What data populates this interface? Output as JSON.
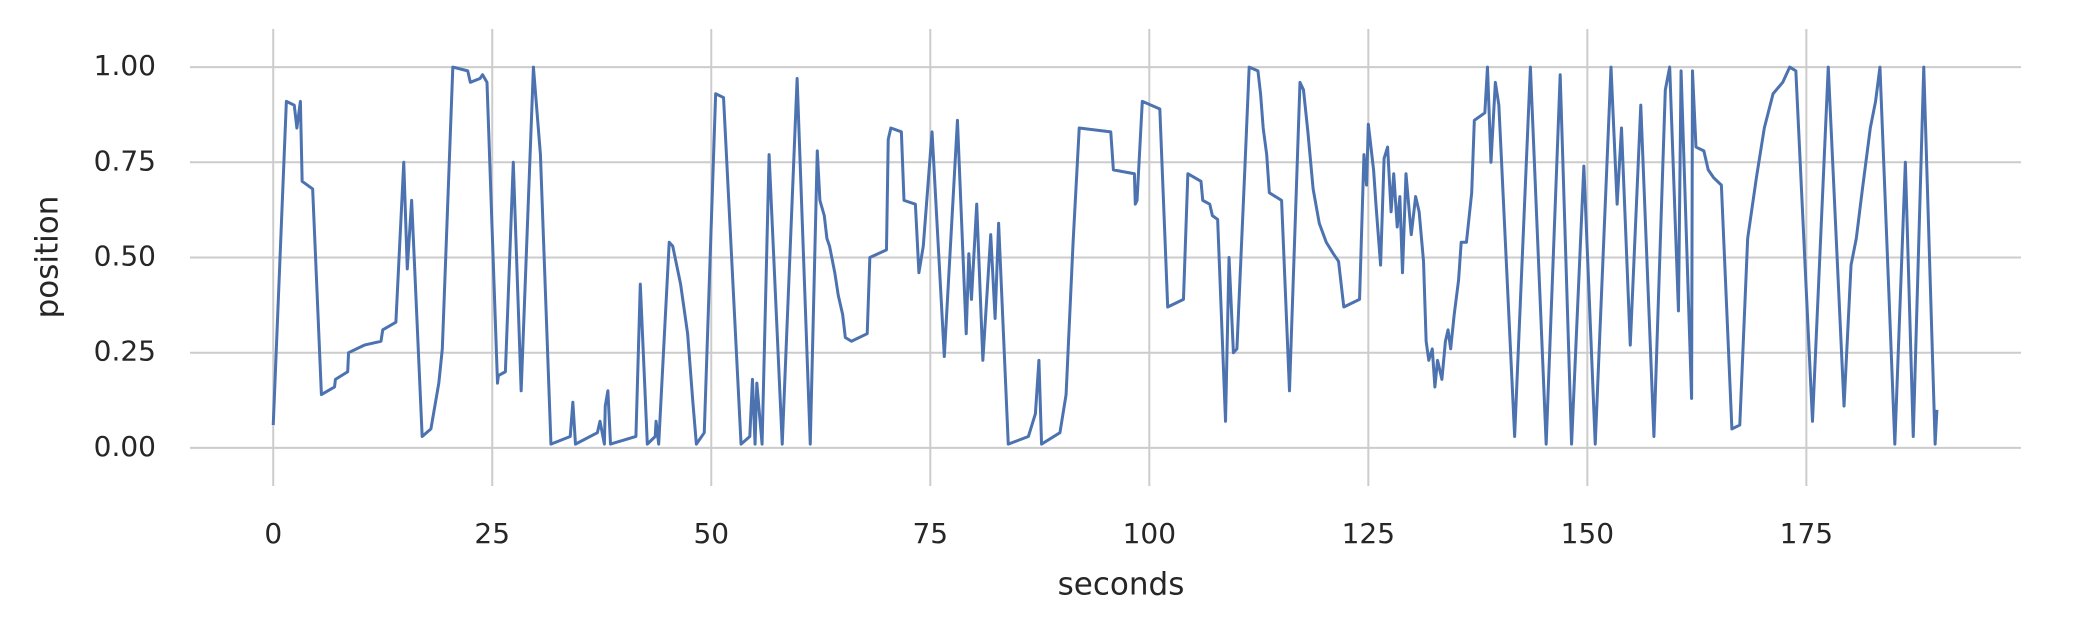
{
  "chart_data": {
    "type": "line",
    "xlabel": "seconds",
    "ylabel": "position",
    "color": "#4c72b0",
    "grid": true,
    "xlim": [
      -9.5,
      199.5
    ],
    "ylim": [
      -0.1,
      1.1
    ],
    "xticks": [
      0,
      25,
      50,
      75,
      100,
      125,
      150,
      175
    ],
    "yticks": [
      {
        "value": 0,
        "label": "0.00"
      },
      {
        "value": 0.25,
        "label": "0.25"
      },
      {
        "value": 0.5,
        "label": "0.50"
      },
      {
        "value": 0.75,
        "label": "0.75"
      },
      {
        "value": 1,
        "label": "1.00"
      }
    ],
    "x": [
      0,
      1.5,
      2.4,
      2.7,
      3.1,
      3.3,
      4.5,
      5.5,
      7.0,
      7.1,
      8.5,
      8.6,
      10.4,
      12.3,
      12.5,
      14.0,
      14.9,
      15.3,
      15.8,
      17.0,
      18.0,
      18.9,
      19.3,
      20.5,
      22.2,
      22.5,
      23.6,
      23.9,
      24.4,
      25.6,
      25.7,
      26.5,
      27.4,
      28.3,
      29.7,
      30.5,
      31.7,
      33.9,
      34.2,
      34.5,
      37.0,
      37.3,
      37.8,
      37.9,
      38.2,
      38.5,
      41.4,
      41.9,
      42.7,
      43.6,
      43.7,
      44.0,
      45.2,
      45.6,
      46.5,
      47.3,
      47.9,
      48.3,
      49.2,
      50.5,
      51.4,
      53.4,
      54.4,
      54.7,
      55.0,
      55.2,
      55.8,
      56.6,
      58.1,
      59.8,
      61.3,
      62.1,
      62.4,
      62.9,
      63.2,
      63.5,
      64.1,
      64.5,
      65.0,
      65.3,
      66.0,
      67.8,
      68.1,
      70.0,
      70.2,
      70.5,
      71.7,
      72.0,
      73.3,
      73.7,
      74.2,
      75.2,
      76.6,
      78.1,
      79.1,
      79.4,
      79.7,
      80.3,
      81.0,
      81.9,
      82.4,
      82.8,
      83.9,
      86.2,
      87.0,
      87.4,
      87.7,
      89.8,
      90.5,
      91.3,
      92.0,
      95.6,
      95.9,
      98.3,
      98.4,
      98.6,
      99.2,
      101.2,
      102.1,
      103.9,
      104.4,
      105.9,
      106.1,
      106.9,
      107.2,
      107.8,
      108.7,
      109.1,
      109.6,
      110.0,
      110.9,
      111.4,
      112.4,
      112.7,
      113.0,
      113.4,
      113.7,
      115.1,
      116.0,
      117.2,
      117.6,
      118.1,
      118.7,
      119.4,
      120.2,
      121.0,
      121.6,
      122.2,
      124.0,
      124.5,
      124.8,
      125.0,
      125.6,
      125.9,
      126.4,
      126.8,
      127.2,
      127.6,
      127.9,
      128.3,
      128.6,
      128.9,
      129.3,
      129.9,
      130.4,
      130.8,
      131.3,
      131.6,
      131.9,
      132.3,
      132.6,
      132.9,
      133.4,
      133.8,
      134.1,
      134.4,
      134.8,
      135.3,
      135.6,
      136.2,
      136.8,
      137.1,
      138.3,
      138.6,
      139.0,
      139.5,
      139.9,
      141.7,
      143.5,
      145.3,
      146.9,
      148.2,
      149.6,
      150.9,
      152.7,
      153.4,
      153.9,
      154.9,
      156.1,
      157.6,
      158.9,
      159.4,
      160.4,
      160.7,
      161.9,
      162.0,
      162.4,
      163.3,
      163.8,
      164.4,
      165.3,
      166.5,
      167.4,
      168.3,
      169.3,
      170.2,
      171.2,
      172.3,
      173.1,
      173.8,
      175.7,
      177.5,
      179.3,
      180.1,
      180.7,
      181.4,
      182.3,
      182.9,
      183.4,
      185.1,
      186.3,
      187.2,
      188.4,
      189.7,
      189.9
    ],
    "values": [
      0.06,
      0.91,
      0.9,
      0.84,
      0.91,
      0.7,
      0.68,
      0.14,
      0.16,
      0.18,
      0.2,
      0.25,
      0.27,
      0.28,
      0.31,
      0.33,
      0.75,
      0.47,
      0.65,
      0.03,
      0.05,
      0.17,
      0.26,
      1.0,
      0.99,
      0.96,
      0.97,
      0.98,
      0.96,
      0.17,
      0.19,
      0.2,
      0.75,
      0.15,
      1.0,
      0.77,
      0.01,
      0.03,
      0.12,
      0.01,
      0.04,
      0.07,
      0.01,
      0.11,
      0.15,
      0.01,
      0.03,
      0.43,
      0.01,
      0.03,
      0.07,
      0.01,
      0.54,
      0.53,
      0.43,
      0.3,
      0.12,
      0.01,
      0.04,
      0.93,
      0.92,
      0.01,
      0.03,
      0.18,
      0.01,
      0.17,
      0.01,
      0.77,
      0.01,
      0.97,
      0.01,
      0.78,
      0.65,
      0.61,
      0.55,
      0.53,
      0.46,
      0.4,
      0.35,
      0.29,
      0.28,
      0.3,
      0.5,
      0.52,
      0.81,
      0.84,
      0.83,
      0.65,
      0.64,
      0.46,
      0.53,
      0.83,
      0.24,
      0.86,
      0.3,
      0.51,
      0.39,
      0.64,
      0.23,
      0.56,
      0.34,
      0.59,
      0.01,
      0.03,
      0.09,
      0.23,
      0.01,
      0.04,
      0.14,
      0.54,
      0.84,
      0.83,
      0.73,
      0.72,
      0.64,
      0.65,
      0.91,
      0.89,
      0.37,
      0.39,
      0.72,
      0.7,
      0.65,
      0.64,
      0.61,
      0.6,
      0.07,
      0.5,
      0.25,
      0.26,
      0.73,
      1.0,
      0.99,
      0.93,
      0.84,
      0.77,
      0.67,
      0.65,
      0.15,
      0.96,
      0.94,
      0.83,
      0.68,
      0.59,
      0.54,
      0.51,
      0.49,
      0.37,
      0.39,
      0.77,
      0.69,
      0.85,
      0.73,
      0.63,
      0.48,
      0.76,
      0.79,
      0.62,
      0.72,
      0.58,
      0.66,
      0.46,
      0.72,
      0.56,
      0.66,
      0.62,
      0.49,
      0.28,
      0.23,
      0.26,
      0.16,
      0.23,
      0.18,
      0.28,
      0.31,
      0.26,
      0.35,
      0.44,
      0.54,
      0.54,
      0.67,
      0.86,
      0.88,
      1.0,
      0.75,
      0.96,
      0.9,
      0.03,
      1.0,
      0.01,
      0.98,
      0.01,
      0.74,
      0.01,
      1.0,
      0.64,
      0.84,
      0.27,
      0.9,
      0.03,
      0.94,
      1.0,
      0.36,
      0.99,
      0.13,
      0.99,
      0.79,
      0.78,
      0.73,
      0.71,
      0.69,
      0.05,
      0.06,
      0.55,
      0.71,
      0.84,
      0.93,
      0.96,
      1.0,
      0.99,
      0.07,
      1.0,
      0.11,
      0.48,
      0.55,
      0.68,
      0.84,
      0.91,
      1.0,
      0.01,
      0.75,
      0.03,
      1.0,
      0.01,
      0.1
    ]
  }
}
